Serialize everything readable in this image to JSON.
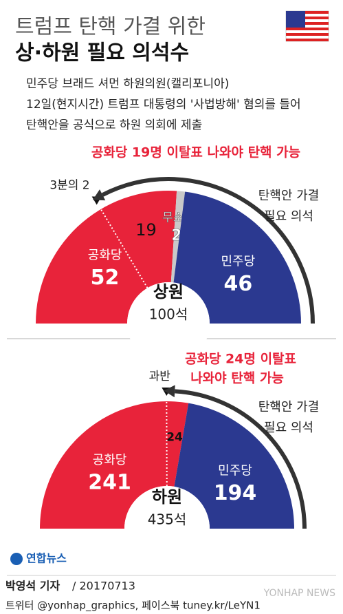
{
  "header": {
    "title_lines": [
      "트럼프 탄핵 가결 위한",
      "상·하원 필요 의석수"
    ],
    "description_lines": [
      "민주당 브래드 셔먼 하원의원(캘리포니아)",
      "12일(현지시간) 트럼프 대통령의 '사법방해' 혐의를 들어",
      "탄핵안을 공식으로 하원 의회에 제출"
    ]
  },
  "chart_data": [
    {
      "type": "half-donut",
      "title": "상원",
      "total": {
        "value": 100,
        "label": "100석"
      },
      "categories": [
        "공화당",
        "무소속",
        "민주당"
      ],
      "values": [
        52,
        2,
        46
      ],
      "colors": [
        "#e8233a",
        "#c9c9c9",
        "#2b3990"
      ],
      "threshold": {
        "label": "3분의 2",
        "defectors": 19
      },
      "annotation_lines": [
        "공화당 19명 이탈표 나와야 탄핵 가능"
      ],
      "arrow_label_lines": [
        "탄핵안 가결",
        "필요 의석"
      ]
    },
    {
      "type": "half-donut",
      "title": "하원",
      "total": {
        "value": 435,
        "label": "435석"
      },
      "categories": [
        "공화당",
        "민주당"
      ],
      "values": [
        241,
        194
      ],
      "colors": [
        "#e8233a",
        "#2b3990"
      ],
      "threshold": {
        "label": "과반",
        "defectors": 24
      },
      "annotation_lines": [
        "공화당 24명 이탈표",
        "나와야 탄핵 가능"
      ],
      "arrow_label_lines": [
        "탄핵안 가결",
        "필요 의석"
      ]
    }
  ],
  "footer": {
    "logo": "연합뉴스",
    "reporter": "박영석 기자",
    "date": "/ 20170713",
    "social": "트위터 @yonhap_graphics, 페이스북 tuney.kr/LeYN1",
    "watermark": "YONHAP NEWS"
  }
}
